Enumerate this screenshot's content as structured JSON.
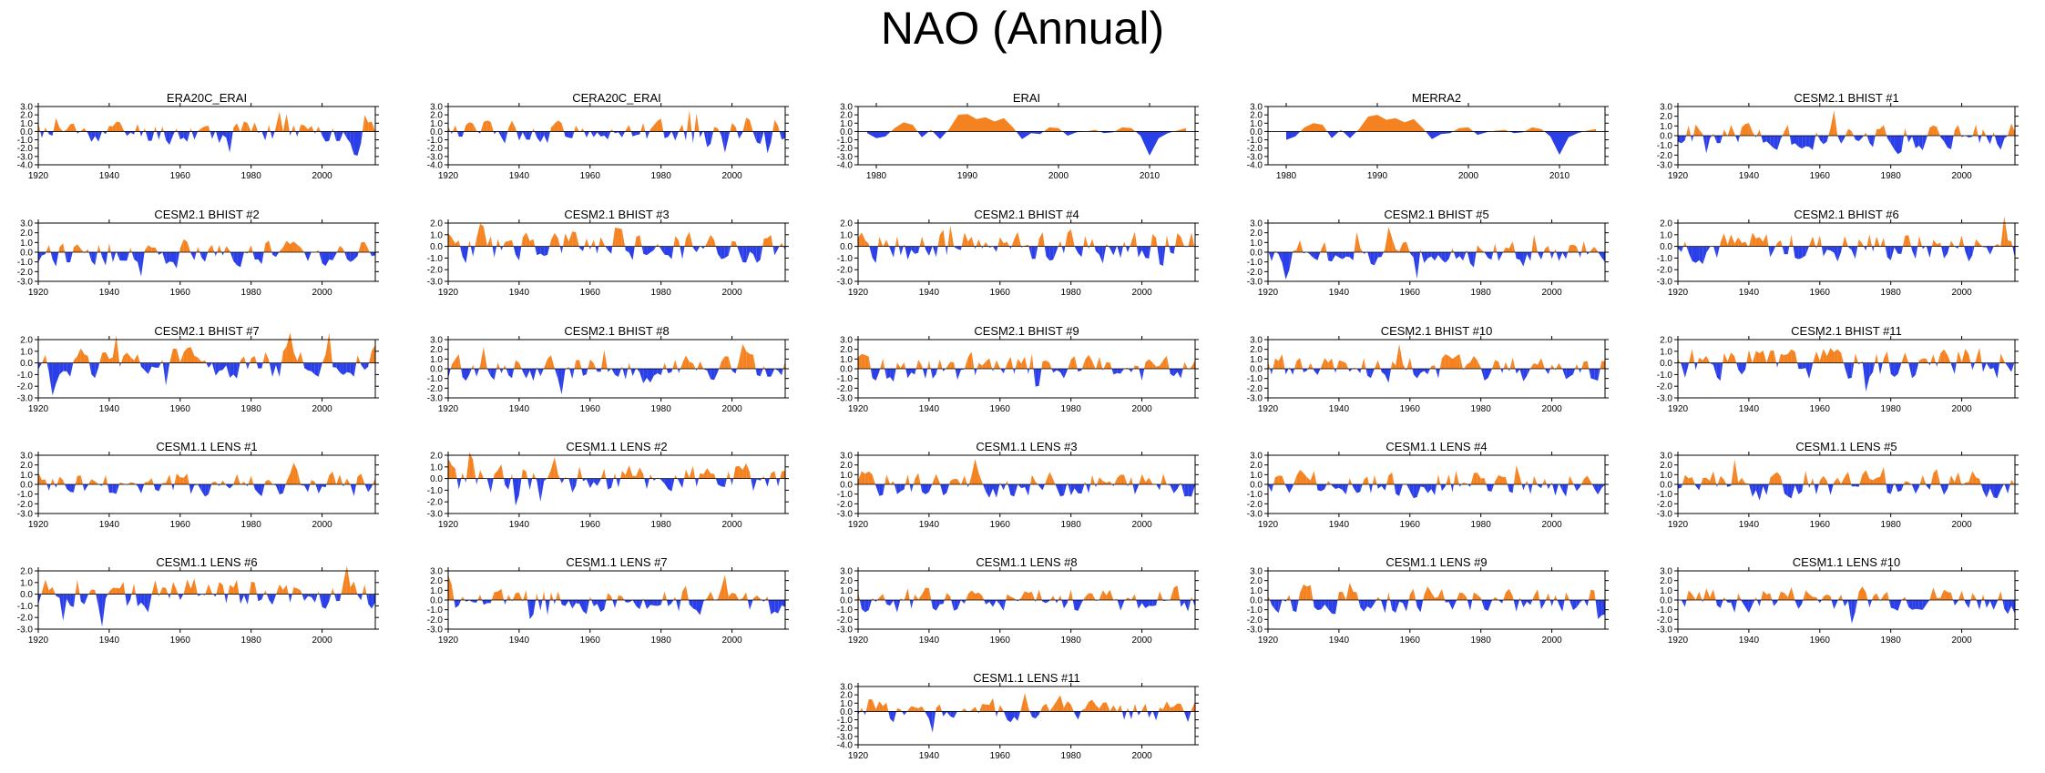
{
  "page_title": "NAO (Annual)",
  "colors": {
    "positive": "#f58220",
    "negative": "#2a3fe8",
    "axis": "#000000",
    "zero_line": "#000000"
  },
  "chart_data": [
    {
      "type": "area",
      "title": "ERA20C_ERAI",
      "xlim": [
        1920,
        2015
      ],
      "xticks": [
        1920,
        1940,
        1960,
        1980,
        2000
      ],
      "xtick_labels": [
        "1920",
        "1940",
        "1960",
        "1980",
        "2000"
      ],
      "ylim": [
        -4,
        3
      ],
      "yticks": [
        3,
        2,
        1,
        0,
        -1,
        -2,
        -3,
        -4
      ],
      "ytick_labels": [
        "3.0",
        "2.0",
        "1.0",
        "0.0",
        "-1.0",
        "-2.0",
        "-3.0",
        "-4.0"
      ],
      "seed": 11,
      "overrides": [
        [
          1988,
          2.4
        ],
        [
          1990,
          2.1
        ],
        [
          1971,
          -1.4
        ],
        [
          2010,
          -2.9
        ],
        [
          2012,
          2.0
        ],
        [
          2014,
          1.2
        ]
      ]
    },
    {
      "type": "area",
      "title": "CERA20C_ERAI",
      "xlim": [
        1920,
        2015
      ],
      "xticks": [
        1920,
        1940,
        1960,
        1980,
        2000
      ],
      "xtick_labels": [
        "1920",
        "1940",
        "1960",
        "1980",
        "2000"
      ],
      "ylim": [
        -4,
        3
      ],
      "yticks": [
        3,
        2,
        1,
        0,
        -1,
        -2,
        -3,
        -4
      ],
      "ytick_labels": [
        "3.0",
        "2.0",
        "1.0",
        "0.0",
        "-1.0",
        "-2.0",
        "-3.0",
        "-4.0"
      ],
      "seed": 12,
      "overrides": [
        [
          1988,
          2.6
        ],
        [
          1990,
          2.2
        ],
        [
          1940,
          -1.1
        ],
        [
          2010,
          -2.6
        ],
        [
          2012,
          1.4
        ]
      ]
    },
    {
      "type": "area",
      "title": "ERAI",
      "xlim": [
        1978,
        2015
      ],
      "xticks": [
        1980,
        1990,
        2000,
        2010
      ],
      "xtick_labels": [
        "1980",
        "1990",
        "2000",
        "2010"
      ],
      "ylim": [
        -4,
        3
      ],
      "yticks": [
        3,
        2,
        1,
        0,
        -1,
        -2,
        -3,
        -4
      ],
      "ytick_labels": [
        "3.0",
        "2.0",
        "1.0",
        "0.0",
        "-1.0",
        "-2.0",
        "-3.0",
        "-4.0"
      ],
      "x": [
        1979,
        1980,
        1981,
        1982,
        1983,
        1984,
        1985,
        1986,
        1987,
        1988,
        1989,
        1990,
        1991,
        1992,
        1993,
        1994,
        1995,
        1996,
        1997,
        1998,
        1999,
        2000,
        2001,
        2002,
        2003,
        2004,
        2005,
        2006,
        2007,
        2008,
        2009,
        2010,
        2011,
        2012,
        2013,
        2014
      ],
      "values": [
        -0.2,
        -0.8,
        -0.6,
        0.4,
        1.1,
        0.8,
        -0.7,
        0.2,
        -0.9,
        0.3,
        2.0,
        2.1,
        1.5,
        1.7,
        1.2,
        1.6,
        0.5,
        -0.9,
        -0.2,
        -0.3,
        0.5,
        0.4,
        -0.5,
        -0.1,
        0.0,
        0.2,
        -0.2,
        -0.1,
        0.5,
        0.4,
        -0.5,
        -2.9,
        -0.8,
        -0.2,
        0.1,
        0.4
      ]
    },
    {
      "type": "area",
      "title": "MERRA2",
      "xlim": [
        1978,
        2015
      ],
      "xticks": [
        1980,
        1990,
        2000,
        2010
      ],
      "xtick_labels": [
        "1980",
        "1990",
        "2000",
        "2010"
      ],
      "ylim": [
        -4,
        3
      ],
      "yticks": [
        3,
        2,
        1,
        0,
        -1,
        -2,
        -3,
        -4
      ],
      "ytick_labels": [
        "3.0",
        "2.0",
        "1.0",
        "0.0",
        "-1.0",
        "-2.0",
        "-3.0",
        "-4.0"
      ],
      "x": [
        1980,
        1981,
        1982,
        1983,
        1984,
        1985,
        1986,
        1987,
        1988,
        1989,
        1990,
        1991,
        1992,
        1993,
        1994,
        1995,
        1996,
        1997,
        1998,
        1999,
        2000,
        2001,
        2002,
        2003,
        2004,
        2005,
        2006,
        2007,
        2008,
        2009,
        2010,
        2011,
        2012,
        2013,
        2014
      ],
      "values": [
        -1.0,
        -0.6,
        0.5,
        1.0,
        0.8,
        -0.8,
        0.2,
        -0.8,
        0.3,
        1.8,
        2.0,
        1.4,
        1.6,
        1.1,
        1.5,
        0.4,
        -0.9,
        -0.3,
        -0.2,
        0.4,
        0.5,
        -0.4,
        -0.1,
        0.1,
        0.2,
        -0.2,
        -0.1,
        0.5,
        0.3,
        -0.6,
        -2.8,
        -0.7,
        -0.2,
        0.1,
        0.3
      ]
    },
    {
      "type": "area",
      "title": "CESM2.1 BHIST #1",
      "xlim": [
        1920,
        2015
      ],
      "xticks": [
        1920,
        1940,
        1960,
        1980,
        2000
      ],
      "xtick_labels": [
        "1920",
        "1940",
        "1960",
        "1980",
        "2000"
      ],
      "ylim": [
        -3,
        3
      ],
      "yticks": [
        3,
        2,
        1,
        0,
        -1,
        -2,
        -3
      ],
      "ytick_labels": [
        "3.0",
        "2.0",
        "1.0",
        "0.0",
        "-1.0",
        "-2.0",
        "-3.0"
      ],
      "seed": 21
    },
    {
      "type": "area",
      "title": "CESM2.1 BHIST #2",
      "xlim": [
        1920,
        2015
      ],
      "xticks": [
        1920,
        1940,
        1960,
        1980,
        2000
      ],
      "xtick_labels": [
        "1920",
        "1940",
        "1960",
        "1980",
        "2000"
      ],
      "ylim": [
        -3,
        3
      ],
      "yticks": [
        3,
        2,
        1,
        0,
        -1,
        -2,
        -3
      ],
      "ytick_labels": [
        "3.0",
        "2.0",
        "1.0",
        "0.0",
        "-1.0",
        "-2.0",
        "-3.0"
      ],
      "seed": 22
    },
    {
      "type": "area",
      "title": "CESM2.1 BHIST #3",
      "xlim": [
        1920,
        2015
      ],
      "xticks": [
        1920,
        1940,
        1960,
        1980,
        2000
      ],
      "xtick_labels": [
        "1920",
        "1940",
        "1960",
        "1980",
        "2000"
      ],
      "ylim": [
        -3,
        2
      ],
      "yticks": [
        2,
        1,
        0,
        -1,
        -2,
        -3
      ],
      "ytick_labels": [
        "2.0",
        "1.0",
        "0.0",
        "-1.0",
        "-2.0",
        "-3.0"
      ],
      "seed": 23
    },
    {
      "type": "area",
      "title": "CESM2.1 BHIST #4",
      "xlim": [
        1920,
        2015
      ],
      "xticks": [
        1920,
        1940,
        1960,
        1980,
        2000
      ],
      "xtick_labels": [
        "1920",
        "1940",
        "1960",
        "1980",
        "2000"
      ],
      "ylim": [
        -3,
        2
      ],
      "yticks": [
        2,
        1,
        0,
        -1,
        -2,
        -3
      ],
      "ytick_labels": [
        "2.0",
        "1.0",
        "0.0",
        "-1.0",
        "-2.0",
        "-3.0"
      ],
      "seed": 24
    },
    {
      "type": "area",
      "title": "CESM2.1 BHIST #5",
      "xlim": [
        1920,
        2015
      ],
      "xticks": [
        1920,
        1940,
        1960,
        1980,
        2000
      ],
      "xtick_labels": [
        "1920",
        "1940",
        "1960",
        "1980",
        "2000"
      ],
      "ylim": [
        -3,
        3
      ],
      "yticks": [
        3,
        2,
        1,
        0,
        -1,
        -2,
        -3
      ],
      "ytick_labels": [
        "3.0",
        "2.0",
        "1.0",
        "0.0",
        "-1.0",
        "-2.0",
        "-3.0"
      ],
      "seed": 25
    },
    {
      "type": "area",
      "title": "CESM2.1 BHIST #6",
      "xlim": [
        1920,
        2015
      ],
      "xticks": [
        1920,
        1940,
        1960,
        1980,
        2000
      ],
      "xtick_labels": [
        "1920",
        "1940",
        "1960",
        "1980",
        "2000"
      ],
      "ylim": [
        -3,
        2
      ],
      "yticks": [
        2,
        1,
        0,
        -1,
        -2,
        -3
      ],
      "ytick_labels": [
        "2.0",
        "1.0",
        "0.0",
        "-1.0",
        "-2.0",
        "-3.0"
      ],
      "seed": 26
    },
    {
      "type": "area",
      "title": "CESM2.1 BHIST #7",
      "xlim": [
        1920,
        2015
      ],
      "xticks": [
        1920,
        1940,
        1960,
        1980,
        2000
      ],
      "xtick_labels": [
        "1920",
        "1940",
        "1960",
        "1980",
        "2000"
      ],
      "ylim": [
        -3,
        2
      ],
      "yticks": [
        2,
        1,
        0,
        -1,
        -2,
        -3
      ],
      "ytick_labels": [
        "2.0",
        "1.0",
        "0.0",
        "-1.0",
        "-2.0",
        "-3.0"
      ],
      "seed": 27
    },
    {
      "type": "area",
      "title": "CESM2.1 BHIST #8",
      "xlim": [
        1920,
        2015
      ],
      "xticks": [
        1920,
        1940,
        1960,
        1980,
        2000
      ],
      "xtick_labels": [
        "1920",
        "1940",
        "1960",
        "1980",
        "2000"
      ],
      "ylim": [
        -3,
        3
      ],
      "yticks": [
        3,
        2,
        1,
        0,
        -1,
        -2,
        -3
      ],
      "ytick_labels": [
        "3.0",
        "2.0",
        "1.0",
        "0.0",
        "-1.0",
        "-2.0",
        "-3.0"
      ],
      "seed": 28
    },
    {
      "type": "area",
      "title": "CESM2.1 BHIST #9",
      "xlim": [
        1920,
        2015
      ],
      "xticks": [
        1920,
        1940,
        1960,
        1980,
        2000
      ],
      "xtick_labels": [
        "1920",
        "1940",
        "1960",
        "1980",
        "2000"
      ],
      "ylim": [
        -3,
        3
      ],
      "yticks": [
        3,
        2,
        1,
        0,
        -1,
        -2,
        -3
      ],
      "ytick_labels": [
        "3.0",
        "2.0",
        "1.0",
        "0.0",
        "-1.0",
        "-2.0",
        "-3.0"
      ],
      "seed": 29
    },
    {
      "type": "area",
      "title": "CESM2.1 BHIST #10",
      "xlim": [
        1920,
        2015
      ],
      "xticks": [
        1920,
        1940,
        1960,
        1980,
        2000
      ],
      "xtick_labels": [
        "1920",
        "1940",
        "1960",
        "1980",
        "2000"
      ],
      "ylim": [
        -3,
        3
      ],
      "yticks": [
        3,
        2,
        1,
        0,
        -1,
        -2,
        -3
      ],
      "ytick_labels": [
        "3.0",
        "2.0",
        "1.0",
        "0.0",
        "-1.0",
        "-2.0",
        "-3.0"
      ],
      "seed": 30
    },
    {
      "type": "area",
      "title": "CESM2.1 BHIST #11",
      "xlim": [
        1920,
        2015
      ],
      "xticks": [
        1920,
        1940,
        1960,
        1980,
        2000
      ],
      "xtick_labels": [
        "1920",
        "1940",
        "1960",
        "1980",
        "2000"
      ],
      "ylim": [
        -3,
        2
      ],
      "yticks": [
        2,
        1,
        0,
        -1,
        -2,
        -3
      ],
      "ytick_labels": [
        "2.0",
        "1.0",
        "0.0",
        "-1.0",
        "-2.0",
        "-3.0"
      ],
      "seed": 31
    },
    {
      "type": "area",
      "title": "CESM1.1 LENS #1",
      "xlim": [
        1920,
        2015
      ],
      "xticks": [
        1920,
        1940,
        1960,
        1980,
        2000
      ],
      "xtick_labels": [
        "1920",
        "1940",
        "1960",
        "1980",
        "2000"
      ],
      "ylim": [
        -3,
        3
      ],
      "yticks": [
        3,
        2,
        1,
        0,
        -1,
        -2,
        -3
      ],
      "ytick_labels": [
        "3.0",
        "2.0",
        "1.0",
        "0.0",
        "-1.0",
        "-2.0",
        "-3.0"
      ],
      "seed": 41
    },
    {
      "type": "area",
      "title": "CESM1.1 LENS #2",
      "xlim": [
        1920,
        2015
      ],
      "xticks": [
        1920,
        1940,
        1960,
        1980,
        2000
      ],
      "xtick_labels": [
        "1920",
        "1940",
        "1960",
        "1980",
        "2000"
      ],
      "ylim": [
        -3,
        2
      ],
      "yticks": [
        2,
        1,
        0,
        -1,
        -2,
        -3
      ],
      "ytick_labels": [
        "2.0",
        "1.0",
        "0.0",
        "-1.0",
        "-2.0",
        "-3.0"
      ],
      "seed": 42
    },
    {
      "type": "area",
      "title": "CESM1.1 LENS #3",
      "xlim": [
        1920,
        2015
      ],
      "xticks": [
        1920,
        1940,
        1960,
        1980,
        2000
      ],
      "xtick_labels": [
        "1920",
        "1940",
        "1960",
        "1980",
        "2000"
      ],
      "ylim": [
        -3,
        3
      ],
      "yticks": [
        3,
        2,
        1,
        0,
        -1,
        -2,
        -3
      ],
      "ytick_labels": [
        "3.0",
        "2.0",
        "1.0",
        "0.0",
        "-1.0",
        "-2.0",
        "-3.0"
      ],
      "seed": 43
    },
    {
      "type": "area",
      "title": "CESM1.1 LENS #4",
      "xlim": [
        1920,
        2015
      ],
      "xticks": [
        1920,
        1940,
        1960,
        1980,
        2000
      ],
      "xtick_labels": [
        "1920",
        "1940",
        "1960",
        "1980",
        "2000"
      ],
      "ylim": [
        -3,
        3
      ],
      "yticks": [
        3,
        2,
        1,
        0,
        -1,
        -2,
        -3
      ],
      "ytick_labels": [
        "3.0",
        "2.0",
        "1.0",
        "0.0",
        "-1.0",
        "-2.0",
        "-3.0"
      ],
      "seed": 44
    },
    {
      "type": "area",
      "title": "CESM1.1 LENS #5",
      "xlim": [
        1920,
        2015
      ],
      "xticks": [
        1920,
        1940,
        1960,
        1980,
        2000
      ],
      "xtick_labels": [
        "1920",
        "1940",
        "1960",
        "1980",
        "2000"
      ],
      "ylim": [
        -3,
        3
      ],
      "yticks": [
        3,
        2,
        1,
        0,
        -1,
        -2,
        -3
      ],
      "ytick_labels": [
        "3.0",
        "2.0",
        "1.0",
        "0.0",
        "-1.0",
        "-2.0",
        "-3.0"
      ],
      "seed": 45
    },
    {
      "type": "area",
      "title": "CESM1.1 LENS #6",
      "xlim": [
        1920,
        2015
      ],
      "xticks": [
        1920,
        1940,
        1960,
        1980,
        2000
      ],
      "xtick_labels": [
        "1920",
        "1940",
        "1960",
        "1980",
        "2000"
      ],
      "ylim": [
        -3,
        2
      ],
      "yticks": [
        2,
        1,
        0,
        -1,
        -2,
        -3
      ],
      "ytick_labels": [
        "2.0",
        "1.0",
        "0.0",
        "-1.0",
        "-2.0",
        "-3.0"
      ],
      "seed": 46
    },
    {
      "type": "area",
      "title": "CESM1.1 LENS #7",
      "xlim": [
        1920,
        2015
      ],
      "xticks": [
        1920,
        1940,
        1960,
        1980,
        2000
      ],
      "xtick_labels": [
        "1920",
        "1940",
        "1960",
        "1980",
        "2000"
      ],
      "ylim": [
        -3,
        3
      ],
      "yticks": [
        3,
        2,
        1,
        0,
        -1,
        -2,
        -3
      ],
      "ytick_labels": [
        "3.0",
        "2.0",
        "1.0",
        "0.0",
        "-1.0",
        "-2.0",
        "-3.0"
      ],
      "seed": 47
    },
    {
      "type": "area",
      "title": "CESM1.1 LENS #8",
      "xlim": [
        1920,
        2015
      ],
      "xticks": [
        1920,
        1940,
        1960,
        1980,
        2000
      ],
      "xtick_labels": [
        "1920",
        "1940",
        "1960",
        "1980",
        "2000"
      ],
      "ylim": [
        -3,
        3
      ],
      "yticks": [
        3,
        2,
        1,
        0,
        -1,
        -2,
        -3
      ],
      "ytick_labels": [
        "3.0",
        "2.0",
        "1.0",
        "0.0",
        "-1.0",
        "-2.0",
        "-3.0"
      ],
      "seed": 48
    },
    {
      "type": "area",
      "title": "CESM1.1 LENS #9",
      "xlim": [
        1920,
        2015
      ],
      "xticks": [
        1920,
        1940,
        1960,
        1980,
        2000
      ],
      "xtick_labels": [
        "1920",
        "1940",
        "1960",
        "1980",
        "2000"
      ],
      "ylim": [
        -3,
        3
      ],
      "yticks": [
        3,
        2,
        1,
        0,
        -1,
        -2,
        -3
      ],
      "ytick_labels": [
        "3.0",
        "2.0",
        "1.0",
        "0.0",
        "-1.0",
        "-2.0",
        "-3.0"
      ],
      "seed": 49
    },
    {
      "type": "area",
      "title": "CESM1.1 LENS #10",
      "xlim": [
        1920,
        2015
      ],
      "xticks": [
        1920,
        1940,
        1960,
        1980,
        2000
      ],
      "xtick_labels": [
        "1920",
        "1940",
        "1960",
        "1980",
        "2000"
      ],
      "ylim": [
        -3,
        3
      ],
      "yticks": [
        3,
        2,
        1,
        0,
        -1,
        -2,
        -3
      ],
      "ytick_labels": [
        "3.0",
        "2.0",
        "1.0",
        "0.0",
        "-1.0",
        "-2.0",
        "-3.0"
      ],
      "seed": 50
    },
    {
      "type": "area",
      "title": "CESM1.1 LENS #11",
      "xlim": [
        1920,
        2015
      ],
      "xticks": [
        1920,
        1940,
        1960,
        1980,
        2000
      ],
      "xtick_labels": [
        "1920",
        "1940",
        "1960",
        "1980",
        "2000"
      ],
      "ylim": [
        -4,
        3
      ],
      "yticks": [
        3,
        2,
        1,
        0,
        -1,
        -2,
        -3,
        -4
      ],
      "ytick_labels": [
        "3.0",
        "2.0",
        "1.0",
        "0.0",
        "-1.0",
        "-2.0",
        "-3.0",
        "-4.0"
      ],
      "seed": 51
    }
  ]
}
